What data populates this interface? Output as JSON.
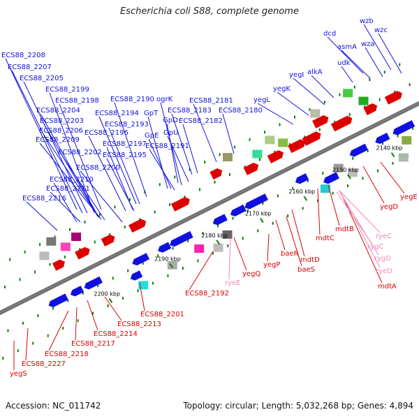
{
  "title": "Escherichia coli S88, complete genome",
  "footer": {
    "accession": "Accession: NC_011742",
    "summary": "Topology: circular; Length: 5,032,268 bp; Genes: 4,894"
  },
  "colors": {
    "forward": "#1010e0",
    "reverse": "#dd0000",
    "rna": "#ee88bb",
    "backbone": "#777777",
    "tick": "#117711"
  },
  "ticks": [
    {
      "label": "2140 kbp"
    },
    {
      "label": "2150 kbp"
    },
    {
      "label": "2160 kbp"
    },
    {
      "label": "2170 kbp"
    },
    {
      "label": "2180 kbp"
    },
    {
      "label": "2190 kbp"
    },
    {
      "label": "2200 kbp"
    }
  ],
  "labels_forward": [
    {
      "name": "wzb"
    },
    {
      "name": "wzc"
    },
    {
      "name": "dcd"
    },
    {
      "name": "asmA"
    },
    {
      "name": "wza"
    },
    {
      "name": "udk"
    },
    {
      "name": "yegI"
    },
    {
      "name": "alkA"
    },
    {
      "name": "yegK"
    },
    {
      "name": "yegL"
    },
    {
      "name": "ECS88_2208"
    },
    {
      "name": "ECS88_2207"
    },
    {
      "name": "ECS88_2205"
    },
    {
      "name": "ECS88_2199"
    },
    {
      "name": "ECS88_2198"
    },
    {
      "name": "ECS88_2204"
    },
    {
      "name": "ECS88_2203"
    },
    {
      "name": "ECS88_2206"
    },
    {
      "name": "ECS88_2209"
    },
    {
      "name": "ECS88_2202"
    },
    {
      "name": "ECS88_2200"
    },
    {
      "name": "ECS88_2210"
    },
    {
      "name": "ECS88_2211"
    },
    {
      "name": "ECS88_2216"
    },
    {
      "name": "ECS88_2190"
    },
    {
      "name": "ogrK"
    },
    {
      "name": "ECS88_2181"
    },
    {
      "name": "ECS88_2194"
    },
    {
      "name": "GpT"
    },
    {
      "name": "ECS88_2183"
    },
    {
      "name": "ECS88_2180"
    },
    {
      "name": "ECS88_2193"
    },
    {
      "name": "GpD"
    },
    {
      "name": "ECS88_2182"
    },
    {
      "name": "ECS88_2196"
    },
    {
      "name": "GpE"
    },
    {
      "name": "GpU"
    },
    {
      "name": "ECS88_2197"
    },
    {
      "name": "ECS88_2191"
    },
    {
      "name": "ECS88_2195"
    }
  ],
  "labels_reverse": [
    {
      "name": "yegE"
    },
    {
      "name": "yegD"
    },
    {
      "name": "mdtB"
    },
    {
      "name": "mdtC"
    },
    {
      "name": "baeR"
    },
    {
      "name": "mdtD"
    },
    {
      "name": "baeS"
    },
    {
      "name": "mdtA"
    },
    {
      "name": "yegP"
    },
    {
      "name": "yegQ"
    },
    {
      "name": "ECS88_2192"
    },
    {
      "name": "ECS88_2201"
    },
    {
      "name": "ECS88_2213"
    },
    {
      "name": "ECS88_2214"
    },
    {
      "name": "ECS88_2217"
    },
    {
      "name": "ECS88_2218"
    },
    {
      "name": "ECS88_2227"
    },
    {
      "name": "yegS"
    }
  ],
  "labels_rna": [
    {
      "name": "ryeC"
    },
    {
      "name": "rygC"
    },
    {
      "name": "rygD"
    },
    {
      "name": "ryeD"
    },
    {
      "name": "ryeE"
    }
  ]
}
